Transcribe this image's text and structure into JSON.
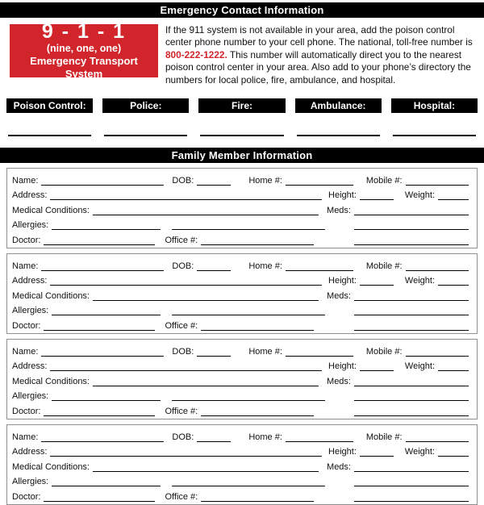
{
  "colors": {
    "accent_red": "#d2252b",
    "bar_black": "#000000",
    "block_border": "#909090"
  },
  "header": {
    "title": "Emergency Contact Information"
  },
  "nine_one_one": {
    "number": "9 - 1 - 1",
    "subtitle": "(nine, one, one)",
    "caption": "Emergency Transport System"
  },
  "intro": {
    "text_before": "If the 911 system is not available in your area, add the poison control center phone number to your cell phone. The national, toll-free number is ",
    "phone": "800-222-1222.",
    "text_after": " This number will automatically direct you to the nearest poison control center in your area. Also add to your phone’s directory the numbers for local police, fire, ambulance, and hospital."
  },
  "contacts": {
    "labels": [
      "Poison Control:",
      "Police:",
      "Fire:",
      "Ambulance:",
      "Hospital:"
    ]
  },
  "family_section": {
    "title": "Family Member Information"
  },
  "member_fields": {
    "name": "Name:",
    "dob": "DOB:",
    "home": "Home #:",
    "mobile": "Mobile #:",
    "address": "Address:",
    "height": "Height:",
    "weight": "Weight:",
    "medical": "Medical Conditions:",
    "meds": "Meds:",
    "allergies": "Allergies:",
    "doctor": "Doctor:",
    "office": "Office #:"
  },
  "members_count": 4
}
